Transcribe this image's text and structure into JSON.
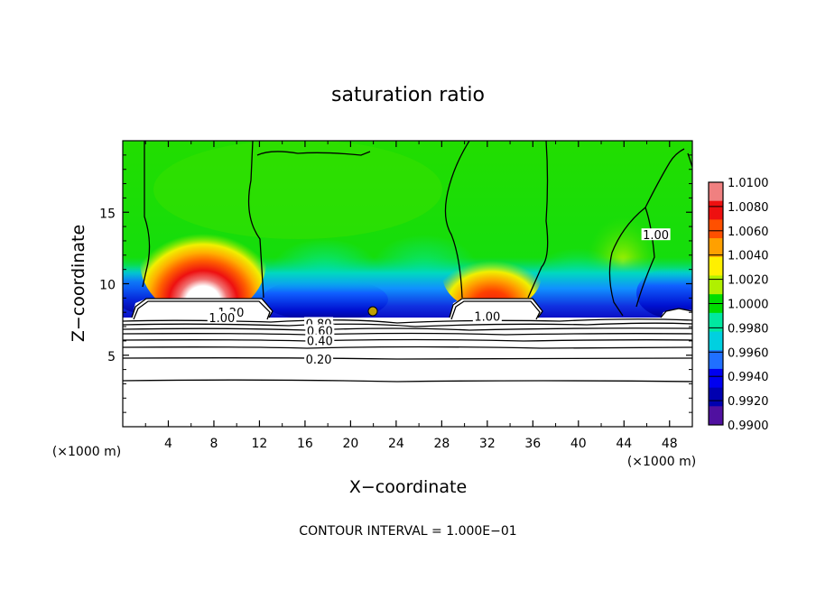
{
  "chart_data": {
    "type": "heatmap",
    "title": "saturation ratio",
    "xlabel": "X−coordinate",
    "ylabel": "Z−coordinate",
    "x_unit": "(×1000 m)",
    "y_unit": "(×1000 m)",
    "xlim": [
      0,
      50
    ],
    "ylim": [
      0,
      20
    ],
    "x_ticks": [
      4,
      8,
      12,
      16,
      20,
      24,
      28,
      32,
      36,
      40,
      44,
      48
    ],
    "y_ticks": [
      5,
      10,
      15
    ],
    "colorbar": {
      "min": 0.99,
      "max": 1.01,
      "tick_labels": [
        "1.0100",
        "1.0080",
        "1.0060",
        "1.0040",
        "1.0020",
        "1.0000",
        "0.9980",
        "0.9960",
        "0.9940",
        "0.9920",
        "0.9900"
      ],
      "colors": [
        "#f08080",
        "#ee1010",
        "#ff5000",
        "#ffa000",
        "#fff000",
        "#b0f000",
        "#00dd00",
        "#00e8a0",
        "#00d0e0",
        "#2070ff",
        "#0000f0",
        "#0000b0",
        "#5010a0"
      ]
    },
    "contour_labels": [
      {
        "text": "1.20",
        "x": 9.5,
        "y": 7.9
      },
      {
        "text": "1.00",
        "x": 8.7,
        "y": 7.5
      },
      {
        "text": "0.80",
        "x": 17.2,
        "y": 7.1
      },
      {
        "text": "0.60",
        "x": 17.3,
        "y": 6.6
      },
      {
        "text": "0.40",
        "x": 17.3,
        "y": 5.9
      },
      {
        "text": "0.20",
        "x": 17.2,
        "y": 4.6
      },
      {
        "text": "1.00",
        "x": 32.0,
        "y": 7.6
      },
      {
        "text": "1.00",
        "x": 46.8,
        "y": 13.3
      }
    ],
    "footer": "CONTOUR INTERVAL = 1.000E−01"
  }
}
